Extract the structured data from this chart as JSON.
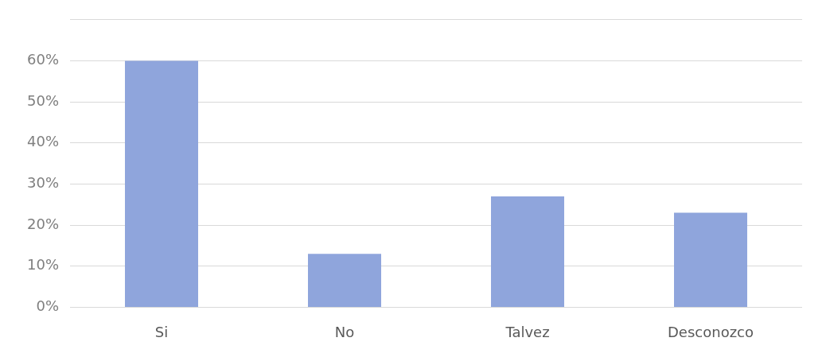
{
  "chart_data": {
    "type": "bar",
    "categories": [
      "Si",
      "No",
      "Talvez",
      "Desconozco"
    ],
    "values": [
      60,
      13,
      27,
      23
    ],
    "color": "#8fa5dc",
    "ylim": [
      0,
      70
    ],
    "yticks": [
      {
        "value": 0,
        "label": "0%"
      },
      {
        "value": 10,
        "label": "10%"
      },
      {
        "value": 20,
        "label": "20%"
      },
      {
        "value": 30,
        "label": "30%"
      },
      {
        "value": 40,
        "label": "40%"
      },
      {
        "value": 50,
        "label": "50%"
      },
      {
        "value": 60,
        "label": "60%"
      },
      {
        "value": 70,
        "label": null
      }
    ],
    "grid": "y",
    "legend": false
  }
}
